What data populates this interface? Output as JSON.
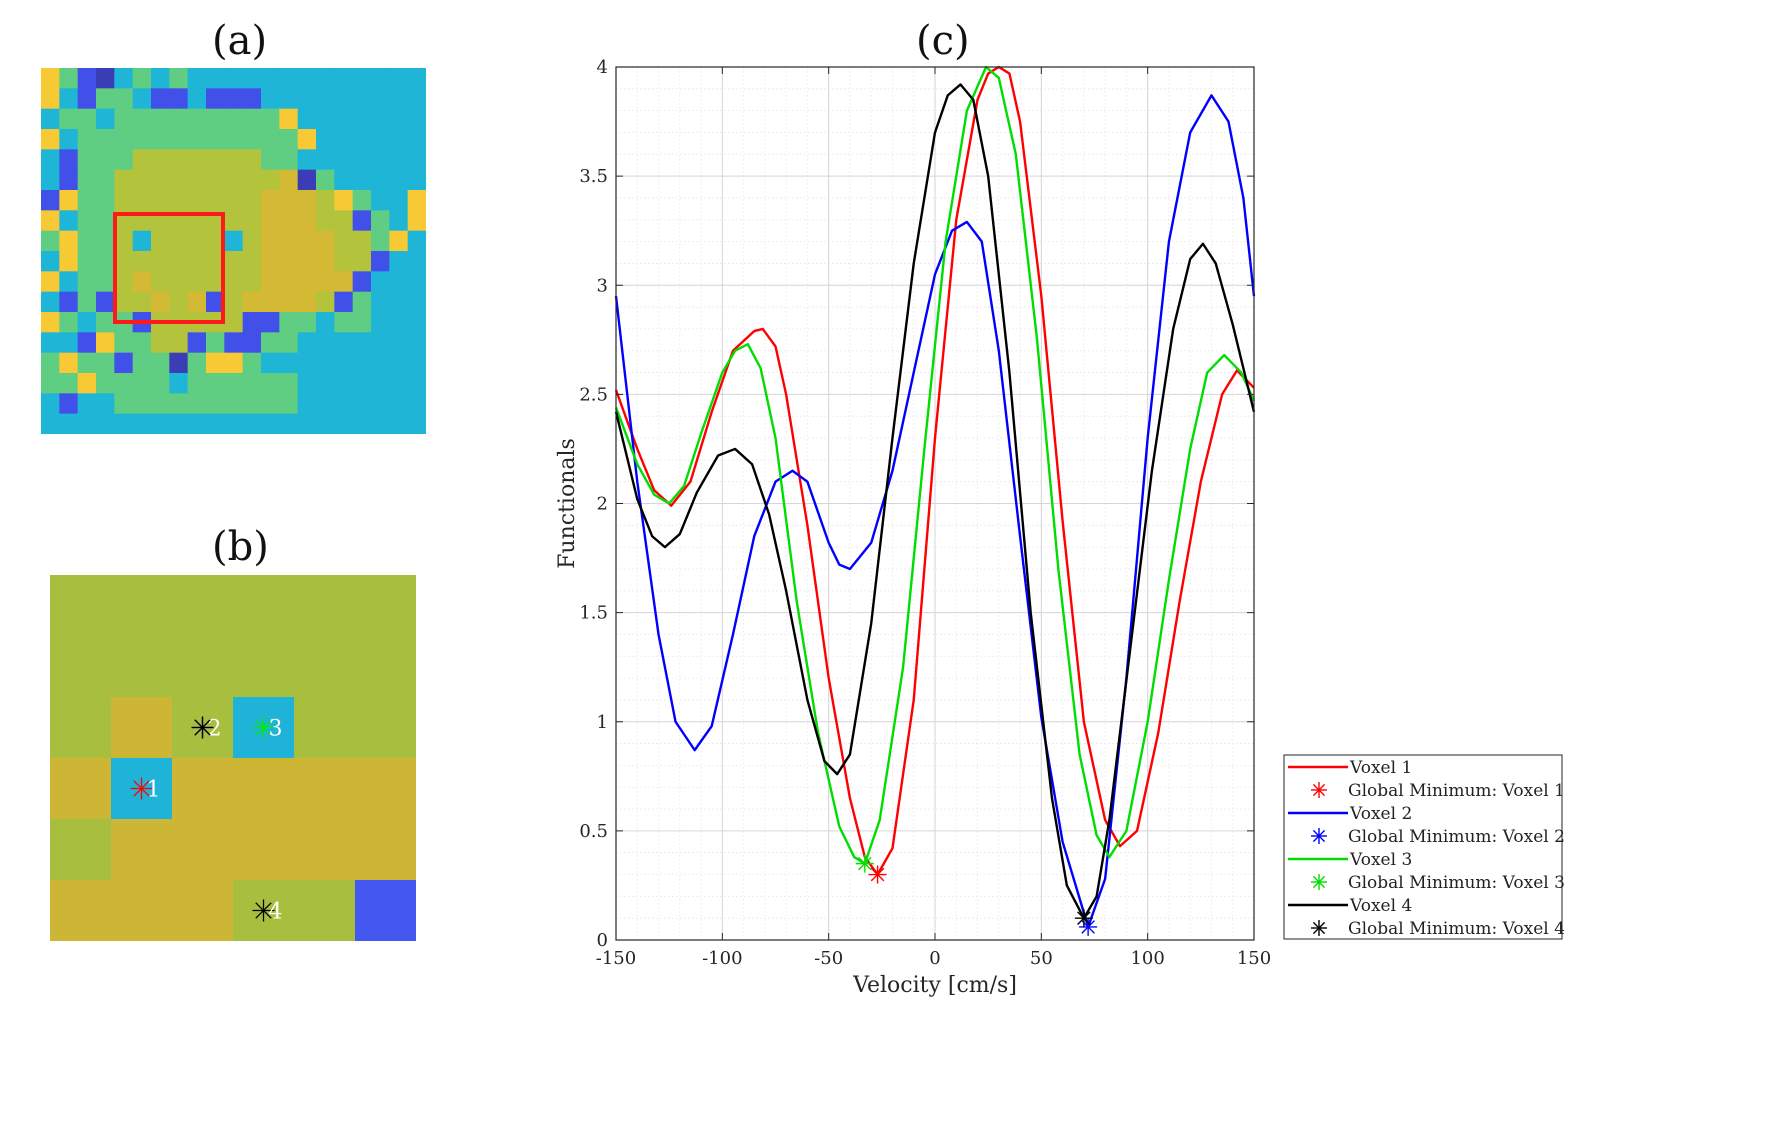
{
  "panels": {
    "a": {
      "title": "(a)"
    },
    "b": {
      "title": "(b)"
    },
    "c": {
      "title": "(c)"
    }
  },
  "colors": {
    "cyan": "#1fb5d6",
    "blue": "#4150e8",
    "yellow": "#f7c934",
    "olive_green": "#b4c33c",
    "green": "#5fcd82",
    "mustard": "#d4ba34",
    "red_box": "#ff1a1a"
  },
  "panel_a": {
    "grid": [
      "YGBNCGCGCCCCCCCCCCCCC",
      "YCBGGCBBCBBBCCCCCCCCC",
      "CGGCGGGGGGGGGYCCCCCCC",
      "YCGGGGGGGGGGGGYCCCCCC",
      "CBGGGOOOOOOOGGCCCCCCC",
      "CBGGOOOOOOOOOMNGCCCCC",
      "BYGGOOOOOOOOMMMOYGCCY",
      "YCGGOOOOOOOOMMMOOBGCY",
      "GYGGOCOOOOCOMMMMOOGYC",
      "CYGGOOOOOOOOMMMMOOBCC",
      "YCGGOMOOOOOOMMMMMBCCC",
      "CBGBOOMOMBOMMMMOBGCCC",
      "YGCGGBOOOOOBBGGCGGCCC",
      "CCBYGGOOBGBBGGCCCCCCC",
      "GYGGBGGNGYYGCCCCCCCCC",
      "GGYGGGGCGGGGGGCCCCCCC",
      "CBCCGGGGGGGGGGCCCCCCC",
      "CCCCCCCCCCCCCCCCCCCCC"
    ],
    "highlight_box": {
      "row_start": 8,
      "row_end": 13,
      "col_start": 4,
      "col_end": 9
    }
  },
  "panel_b": {
    "grid": [
      "LLLLLL",
      "LLLLLL",
      "LMLCLL",
      "MCMMMM",
      "LMMMMM",
      "MMMLLB"
    ],
    "markers": [
      {
        "label": "1",
        "row": 3,
        "col": 1,
        "color": "#ff0000"
      },
      {
        "label": "2",
        "row": 2,
        "col": 2,
        "color": "#0000ff"
      },
      {
        "label": "2",
        "row": 2,
        "col": 2,
        "color": "#000000"
      },
      {
        "label": "3",
        "row": 2,
        "col": 3,
        "color": "#00ee00"
      },
      {
        "label": "4",
        "row": 5,
        "col": 3,
        "color": "#000000"
      }
    ]
  },
  "chart_data": {
    "type": "line",
    "xlabel": "Velocity [cm/s]",
    "ylabel": "Functionals",
    "xlim": [
      -150,
      150
    ],
    "ylim": [
      0,
      4
    ],
    "xticks": [
      -150,
      -100,
      -50,
      0,
      50,
      100,
      150
    ],
    "xtick_labels": [
      "-150",
      "-100",
      "-50",
      "0",
      "50",
      "100",
      "150"
    ],
    "yticks": [
      0,
      0.5,
      1,
      1.5,
      2,
      2.5,
      3,
      3.5,
      4
    ],
    "ytick_labels": [
      "0",
      "0.5",
      "1",
      "1.5",
      "2",
      "2.5",
      "3",
      "3.5",
      "4"
    ],
    "grid": true,
    "minor_grid": true,
    "legend_position": "outside-bottom-right",
    "series": [
      {
        "name": "Voxel 1",
        "color": "#ff0000",
        "x": [
          -150,
          -140,
          -132,
          -124,
          -115,
          -105,
          -95,
          -85,
          -81,
          -75,
          -70,
          -60,
          -50,
          -40,
          -33,
          -27,
          -20,
          -10,
          0,
          10,
          20,
          25,
          30,
          35,
          40,
          50,
          60,
          70,
          80,
          87,
          95,
          105,
          115,
          125,
          135,
          142,
          150
        ],
        "y": [
          2.52,
          2.25,
          2.06,
          1.99,
          2.1,
          2.42,
          2.7,
          2.79,
          2.8,
          2.72,
          2.5,
          1.9,
          1.2,
          0.65,
          0.38,
          0.3,
          0.42,
          1.1,
          2.3,
          3.3,
          3.85,
          3.97,
          4.0,
          3.97,
          3.75,
          2.95,
          1.92,
          1.0,
          0.55,
          0.43,
          0.5,
          0.95,
          1.55,
          2.1,
          2.5,
          2.61,
          2.53
        ]
      },
      {
        "name": "Global Minimum: Voxel 1",
        "marker": "asterisk",
        "color": "#ff0000",
        "x": [
          -27
        ],
        "y": [
          0.3
        ]
      },
      {
        "name": "Voxel 2",
        "color": "#0000ff",
        "x": [
          -150,
          -140,
          -130,
          -122,
          -113,
          -105,
          -95,
          -85,
          -75,
          -67,
          -60,
          -50,
          -45,
          -40,
          -30,
          -20,
          -10,
          0,
          8,
          15,
          22,
          30,
          40,
          50,
          60,
          72,
          80,
          90,
          100,
          110,
          120,
          130,
          138,
          145,
          150
        ],
        "y": [
          2.95,
          2.1,
          1.4,
          1.0,
          0.87,
          0.98,
          1.4,
          1.85,
          2.1,
          2.15,
          2.1,
          1.82,
          1.72,
          1.7,
          1.82,
          2.15,
          2.6,
          3.05,
          3.25,
          3.29,
          3.2,
          2.7,
          1.85,
          1.02,
          0.45,
          0.06,
          0.28,
          1.2,
          2.3,
          3.2,
          3.7,
          3.87,
          3.75,
          3.4,
          2.95
        ]
      },
      {
        "name": "Global Minimum: Voxel 2",
        "marker": "asterisk",
        "color": "#0000ff",
        "x": [
          72
        ],
        "y": [
          0.06
        ]
      },
      {
        "name": "Voxel 3",
        "color": "#00dd00",
        "x": [
          -150,
          -140,
          -132,
          -125,
          -118,
          -110,
          -100,
          -94,
          -88,
          -82,
          -75,
          -65,
          -55,
          -45,
          -38,
          -33,
          -26,
          -15,
          -5,
          5,
          15,
          24,
          30,
          38,
          48,
          58,
          68,
          76,
          82,
          90,
          100,
          110,
          120,
          128,
          136,
          144,
          150
        ],
        "y": [
          2.44,
          2.18,
          2.04,
          2.0,
          2.08,
          2.32,
          2.6,
          2.7,
          2.73,
          2.62,
          2.3,
          1.55,
          0.95,
          0.52,
          0.38,
          0.35,
          0.55,
          1.25,
          2.25,
          3.2,
          3.8,
          4.0,
          3.95,
          3.6,
          2.75,
          1.7,
          0.85,
          0.48,
          0.38,
          0.5,
          1.0,
          1.65,
          2.25,
          2.6,
          2.68,
          2.6,
          2.47
        ]
      },
      {
        "name": "Global Minimum: Voxel 3",
        "marker": "asterisk",
        "color": "#00dd00",
        "x": [
          -33
        ],
        "y": [
          0.35
        ]
      },
      {
        "name": "Voxel 4",
        "color": "#000000",
        "x": [
          -150,
          -140,
          -133,
          -127,
          -120,
          -112,
          -102,
          -94,
          -86,
          -78,
          -70,
          -60,
          -52,
          -46,
          -40,
          -30,
          -20,
          -10,
          0,
          6,
          12,
          18,
          25,
          35,
          45,
          55,
          62,
          70,
          76,
          82,
          92,
          102,
          112,
          120,
          126,
          132,
          140,
          150
        ],
        "y": [
          2.42,
          2.02,
          1.85,
          1.8,
          1.86,
          2.05,
          2.22,
          2.25,
          2.18,
          1.95,
          1.6,
          1.1,
          0.82,
          0.76,
          0.85,
          1.45,
          2.3,
          3.1,
          3.7,
          3.87,
          3.92,
          3.85,
          3.5,
          2.6,
          1.5,
          0.65,
          0.25,
          0.1,
          0.2,
          0.55,
          1.35,
          2.15,
          2.8,
          3.12,
          3.19,
          3.1,
          2.82,
          2.42
        ]
      },
      {
        "name": "Global Minimum: Voxel 4",
        "marker": "asterisk",
        "color": "#000000",
        "x": [
          70
        ],
        "y": [
          0.1
        ]
      }
    ]
  }
}
